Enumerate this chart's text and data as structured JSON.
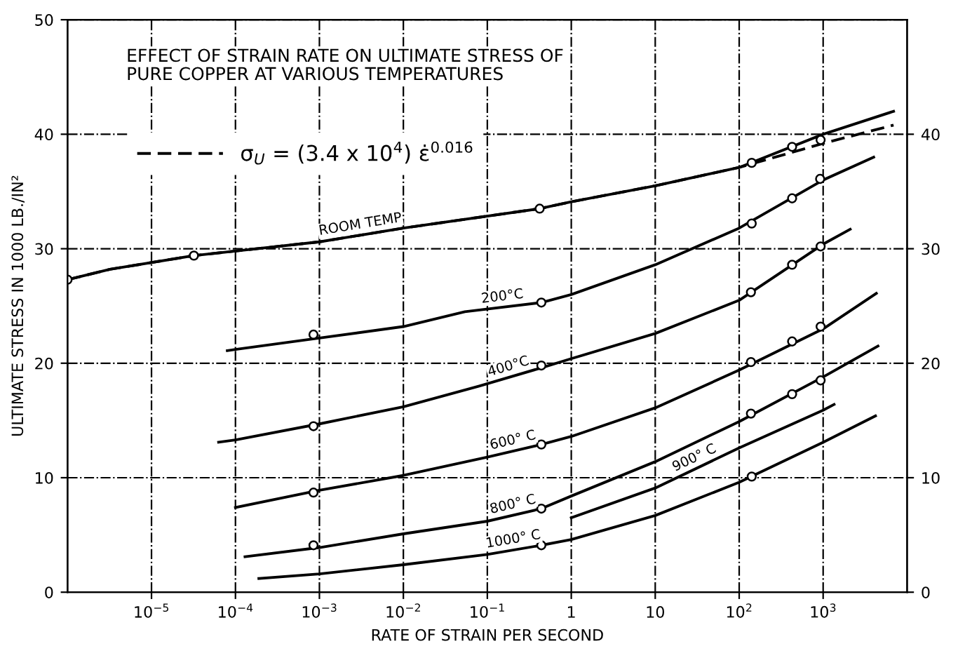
{
  "chart_data": {
    "type": "line",
    "title": "EFFECT OF STRAIN RATE ON ULTIMATE STRESS OF PURE COPPER AT VARIOUS TEMPERATURES",
    "xlabel": "RATE OF STRAIN PER SECOND",
    "ylabel": "ULTIMATE STRESS IN 1000 LB./IN²",
    "log": "x",
    "xlim": [
      1e-06,
      10000
    ],
    "xticks": [
      {
        "value": 1e-05,
        "label": "10$^{−5}$"
      },
      {
        "value": 0.0001,
        "label": "10$^{−4}$"
      },
      {
        "value": 0.001,
        "label": "10$^{−3}$"
      },
      {
        "value": 0.01,
        "label": "10$^{−2}$"
      },
      {
        "value": 0.1,
        "label": "10$^{−1}$"
      },
      1,
      10,
      {
        "value": 100,
        "label": "10$^{2}$"
      },
      {
        "value": 1000,
        "label": "10$^{3}$"
      }
    ],
    "ylim": [
      0,
      50
    ],
    "yticks": [
      0,
      10,
      20,
      30,
      40,
      50
    ],
    "y2lim": [
      0,
      50
    ],
    "y2ticks": [
      0,
      10,
      20,
      30,
      40
    ],
    "grid": true,
    "legend": "top left",
    "marker": "none",
    "line_style": "solid",
    "series": [
      {
        "name": "ROOM TEMP",
        "color": "#000000",
        "x": [
          1e-06,
          3.2e-06,
          3.2e-05,
          0.0001,
          0.001,
          0.01,
          0.42,
          1,
          10,
          100,
          1000,
          6900
        ],
        "values": [
          27.3,
          28.2,
          29.4,
          29.8,
          30.6,
          31.8,
          33.5,
          34.1,
          35.5,
          37.1,
          40.0,
          42.0
        ]
      },
      {
        "name": "σ$_{U}$ = (3.4 x 10$^{4}$) ε̇$^{0.016}$",
        "color": "#000000",
        "line_style": "dashed",
        "x": [
          1e-06,
          3.2e-06,
          3.2e-05,
          0.0001,
          0.001,
          0.01,
          0.42,
          1,
          10,
          100,
          1000,
          6900
        ],
        "values": [
          27.3,
          28.2,
          29.4,
          29.8,
          30.6,
          31.8,
          33.5,
          34.1,
          35.5,
          37.1,
          39.2,
          40.8
        ]
      },
      {
        "name": "200°C",
        "color": "#000000",
        "x": [
          8e-05,
          0.0001,
          0.001,
          0.01,
          0.054,
          0.44,
          1,
          10,
          100,
          1000,
          4000
        ],
        "values": [
          21.1,
          21.2,
          22.2,
          23.2,
          24.5,
          25.3,
          26.0,
          28.6,
          31.8,
          36.0,
          38.0
        ]
      },
      {
        "name": "400°C",
        "color": "#000000",
        "x": [
          6.3e-05,
          0.0001,
          0.001,
          0.01,
          0.08,
          0.44,
          1,
          10,
          100,
          1000,
          2100
        ],
        "values": [
          13.1,
          13.3,
          14.7,
          16.2,
          18.0,
          19.6,
          20.4,
          22.6,
          25.5,
          30.4,
          31.7
        ]
      },
      {
        "name": "600° C",
        "color": "#000000",
        "x": [
          0.0001,
          0.001,
          0.01,
          0.1,
          0.44,
          1,
          10,
          100,
          1000,
          4300
        ],
        "values": [
          7.4,
          8.9,
          10.2,
          11.8,
          12.9,
          13.6,
          16.1,
          19.4,
          23.0,
          26.1
        ]
      },
      {
        "name": "800° C",
        "color": "#000000",
        "x": [
          0.00013,
          0.001,
          0.01,
          0.1,
          0.44,
          1,
          10,
          100,
          1000,
          4500
        ],
        "values": [
          3.1,
          3.9,
          5.1,
          6.2,
          7.3,
          8.4,
          11.4,
          14.9,
          18.8,
          21.5
        ]
      },
      {
        "name": "900° C",
        "color": "#000000",
        "x": [
          1,
          10,
          100,
          1000,
          1350
        ],
        "values": [
          6.5,
          9.1,
          12.6,
          15.9,
          16.4
        ]
      },
      {
        "name": "1000° C",
        "color": "#000000",
        "x": [
          0.00019,
          0.001,
          0.01,
          0.1,
          0.44,
          1,
          10,
          100,
          1000,
          4200
        ],
        "values": [
          1.2,
          1.6,
          2.4,
          3.3,
          4.1,
          4.6,
          6.7,
          9.6,
          13.1,
          15.4
        ]
      },
      {
        "type": "scatter",
        "marker": "circle",
        "color": "#000000",
        "x": [
          1e-06,
          3.2e-05,
          0.42,
          141,
          427,
          933,
          0.00085,
          0.44,
          141,
          427,
          920,
          0.00085,
          0.44,
          138,
          427,
          933,
          0.00085,
          0.44,
          138,
          427,
          933,
          0.00085,
          0.44,
          138,
          427,
          933,
          0.44,
          141
        ],
        "values": [
          27.3,
          29.4,
          33.5,
          37.5,
          38.9,
          39.5,
          22.5,
          25.3,
          32.2,
          34.4,
          36.1,
          14.5,
          19.8,
          26.2,
          28.6,
          30.2,
          8.7,
          12.9,
          20.1,
          21.9,
          23.2,
          4.1,
          7.3,
          15.6,
          17.3,
          18.5,
          4.1,
          10.1
        ]
      }
    ]
  }
}
